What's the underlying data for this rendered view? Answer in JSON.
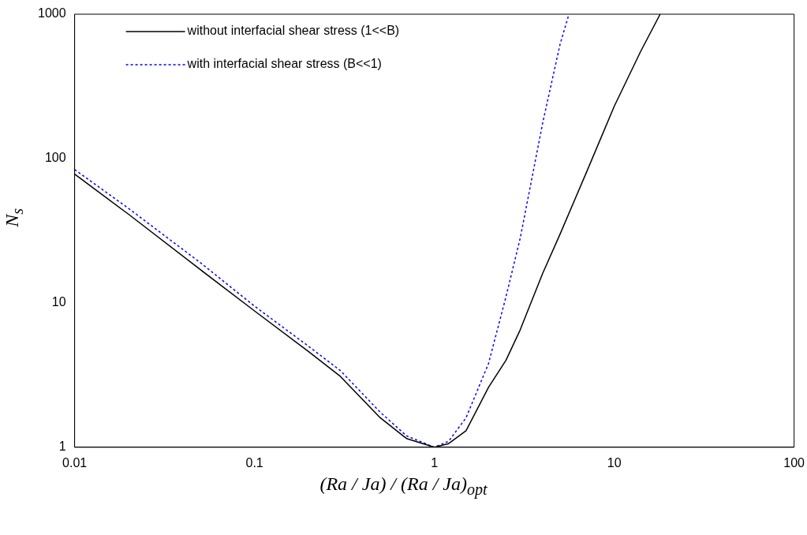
{
  "chart_data": {
    "type": "line",
    "xlabel": "(Ra / Ja) / (Ra / Ja)$_{opt}$",
    "ylabel": "N$_{s}$",
    "log": "xy",
    "xlim": [
      0.01,
      100
    ],
    "xticks": [
      0.01,
      0.1,
      1,
      10,
      100
    ],
    "ylim": [
      1,
      1000
    ],
    "yticks": [
      1,
      10,
      100,
      1000
    ],
    "grid": false,
    "legend": "top left",
    "marker": "none",
    "series": [
      {
        "name": "without interfacial shear stress (1<<B)",
        "color": "#000000",
        "line_style": "solid",
        "x": [
          0.01,
          0.02,
          0.05,
          0.1,
          0.2,
          0.3,
          0.5,
          0.7,
          1,
          1.2,
          1.5,
          2,
          2.5,
          3,
          4,
          5,
          7,
          10,
          14,
          18
        ],
        "values": [
          78,
          41,
          17,
          8.8,
          4.6,
          3.1,
          1.6,
          1.15,
          1,
          1.06,
          1.3,
          2.6,
          4,
          6.5,
          16,
          30,
          80,
          230,
          550,
          1000
        ]
      },
      {
        "name": "with interfacial shear stress (B<<1)",
        "color": "#0000ff",
        "line_style": "dotted",
        "x": [
          0.01,
          0.02,
          0.05,
          0.1,
          0.2,
          0.3,
          0.5,
          0.7,
          1,
          1.2,
          1.5,
          2,
          2.5,
          3,
          4,
          5,
          5.6
        ],
        "values": [
          84,
          45,
          19,
          9.5,
          5,
          3.4,
          1.75,
          1.2,
          1,
          1.1,
          1.6,
          3.8,
          11,
          28,
          176,
          620,
          1000
        ]
      }
    ]
  }
}
